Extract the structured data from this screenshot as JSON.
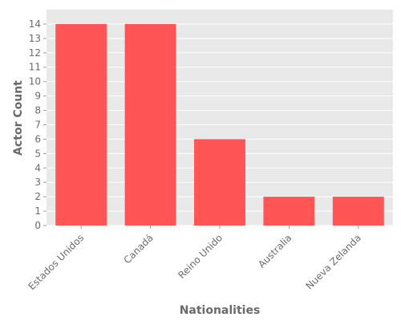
{
  "chart_data": {
    "type": "bar",
    "title": "",
    "xlabel": "Nationalities",
    "ylabel": "Actor Count",
    "categories": [
      "Estados Unidos",
      "Canadá",
      "Reino Unido",
      "Australia",
      "Nueva Zelanda"
    ],
    "values": [
      14,
      14,
      6,
      2,
      2
    ],
    "ylim": [
      0,
      15
    ],
    "yticks": [
      0,
      1,
      2,
      3,
      4,
      5,
      6,
      7,
      8,
      9,
      10,
      11,
      12,
      13,
      14
    ],
    "grid": true,
    "legend": "none",
    "colors": {
      "bar": "#ff5555",
      "plot_background": "#e9e9e9",
      "grid": "#ffffff",
      "text": "#6b6b6b"
    }
  }
}
